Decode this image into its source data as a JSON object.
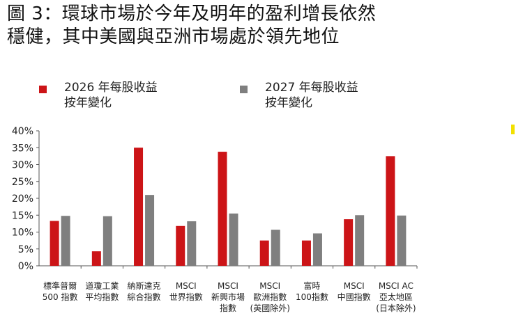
{
  "title": {
    "line1": "圖 3：環球市場於今年及明年的盈利增長依然",
    "line2": "穩健，其中美國與亞洲市場處於領先地位"
  },
  "legend": [
    {
      "label": "2026 年每股收益\n按年變化",
      "color": "#cc1417"
    },
    {
      "label": "2027 年每股收益\n按年變化",
      "color": "#7f7f7f"
    }
  ],
  "chart_data": {
    "type": "bar",
    "title": "圖 3：環球市場於今年及明年的盈利增長依然穩健，其中美國與亞洲市場處於領先地位",
    "xlabel": "",
    "ylabel": "",
    "ylim": [
      0,
      40
    ],
    "y_ticks": [
      "0%",
      "5%",
      "10%",
      "15%",
      "20%",
      "25%",
      "30%",
      "35%",
      "40%"
    ],
    "y_tick_values": [
      0,
      5,
      10,
      15,
      20,
      25,
      30,
      35,
      40
    ],
    "grid": false,
    "legend_position": "top",
    "categories": [
      [
        "標準普爾",
        "500 指數"
      ],
      [
        "道瓊工業",
        "平均指數"
      ],
      [
        "納斯達克",
        "綜合指數"
      ],
      [
        "MSCI",
        "世界指數"
      ],
      [
        "MSCI",
        "新興市場",
        "指數"
      ],
      [
        "MSCI",
        "歐洲指數",
        "(英國除外)"
      ],
      [
        "富時",
        "100指數"
      ],
      [
        "MSCI",
        "中國指數"
      ],
      [
        "MSCI AC",
        "亞太地區",
        "(日本除外)"
      ]
    ],
    "series": [
      {
        "name": "2026 年每股收益按年變化",
        "color": "#cc1417",
        "values": [
          13.3,
          4.3,
          35.0,
          11.8,
          33.8,
          7.5,
          7.5,
          13.8,
          32.5
        ]
      },
      {
        "name": "2027 年每股收益按年變化",
        "color": "#7f7f7f",
        "values": [
          14.8,
          14.7,
          21.0,
          13.2,
          15.5,
          10.7,
          9.6,
          15.0,
          14.9
        ]
      }
    ]
  }
}
